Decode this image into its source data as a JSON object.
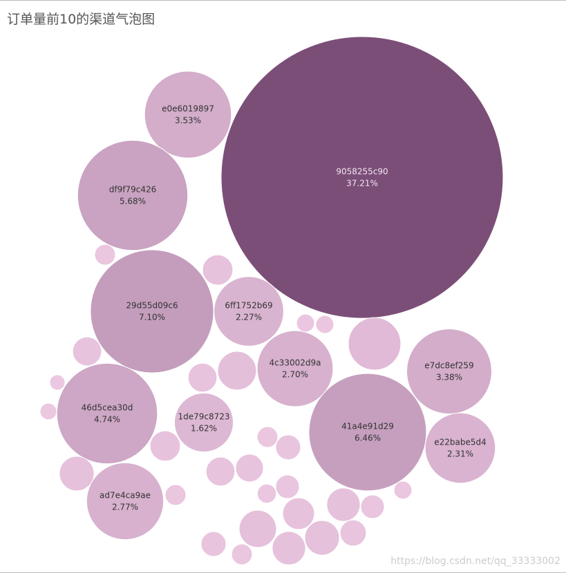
{
  "chart_data": {
    "type": "bubble",
    "title": "订单量前10的渠道气泡图",
    "watermark": "https://blog.csdn.net/qq_33333002",
    "color_range": [
      "#efcbe4",
      "#7b4e78"
    ],
    "categories": [
      "9058255c90",
      "e0e6019897",
      "df9f79c426",
      "29d55d09c6",
      "6ff1752b69",
      "4c33002d9a",
      "e7dc8ef259",
      "46d5cea30d",
      "1de79c8723",
      "41a4e91d29",
      "e22babe5d4",
      "ad7e4ca9ae",
      null,
      null,
      null,
      null,
      null,
      null,
      null,
      null,
      null,
      null,
      null,
      null,
      null,
      null,
      null,
      null,
      null,
      null,
      null,
      null,
      null,
      null,
      null,
      null,
      null,
      null,
      null,
      null,
      null
    ],
    "values": [
      37.21,
      3.53,
      5.68,
      7.1,
      2.27,
      2.7,
      3.38,
      4.74,
      1.62,
      6.46,
      2.31,
      2.77,
      0.43,
      1.29,
      0.56,
      0.39,
      0.2,
      0.65,
      0.52,
      0.56,
      0.32,
      0.52,
      0.26,
      0.47,
      0.39,
      0.7,
      0.39,
      0.43,
      0.29,
      0.2,
      0.2,
      0.36,
      0.29,
      0.2,
      0.13,
      0.11,
      0.15,
      0.15,
      0.15,
      0.26,
      0.17
    ],
    "value_labels": [
      "37.21%",
      "3.53%",
      "5.68%",
      "7.10%",
      "2.27%",
      "2.70%",
      "3.38%",
      "4.74%",
      "1.62%",
      "6.46%",
      "2.31%",
      "2.77%",
      null,
      null,
      null,
      null,
      null,
      null,
      null,
      null,
      null,
      null,
      null,
      null,
      null,
      null,
      null,
      null,
      null,
      null,
      null,
      null,
      null,
      null,
      null,
      null,
      null,
      null,
      null,
      null,
      null
    ]
  }
}
